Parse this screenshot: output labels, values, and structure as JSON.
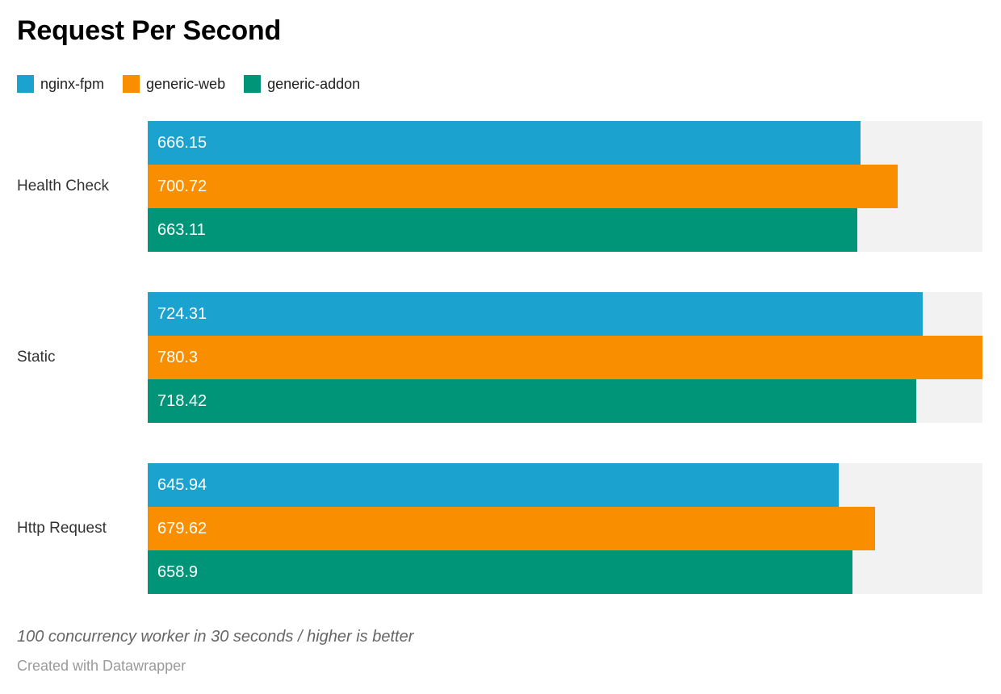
{
  "chart_data": {
    "type": "bar",
    "orientation": "horizontal",
    "title": "Request Per Second",
    "categories": [
      "Health Check",
      "Static",
      "Http Request"
    ],
    "series": [
      {
        "name": "nginx-fpm",
        "color": "#1CA2CE",
        "values": [
          666.15,
          724.31,
          645.94
        ]
      },
      {
        "name": "generic-web",
        "color": "#F98E00",
        "values": [
          700.72,
          780.3,
          679.62
        ]
      },
      {
        "name": "generic-addon",
        "color": "#009478",
        "values": [
          663.11,
          718.42,
          658.9
        ]
      }
    ],
    "xmax": 780.3,
    "track_color": "#f2f2f2",
    "value_label_color": "#ffffff",
    "legend_position": "top",
    "grid": "off"
  },
  "footer": {
    "note": "100 concurrency worker in 30 seconds / higher is better",
    "attribution": "Created with Datawrapper"
  }
}
